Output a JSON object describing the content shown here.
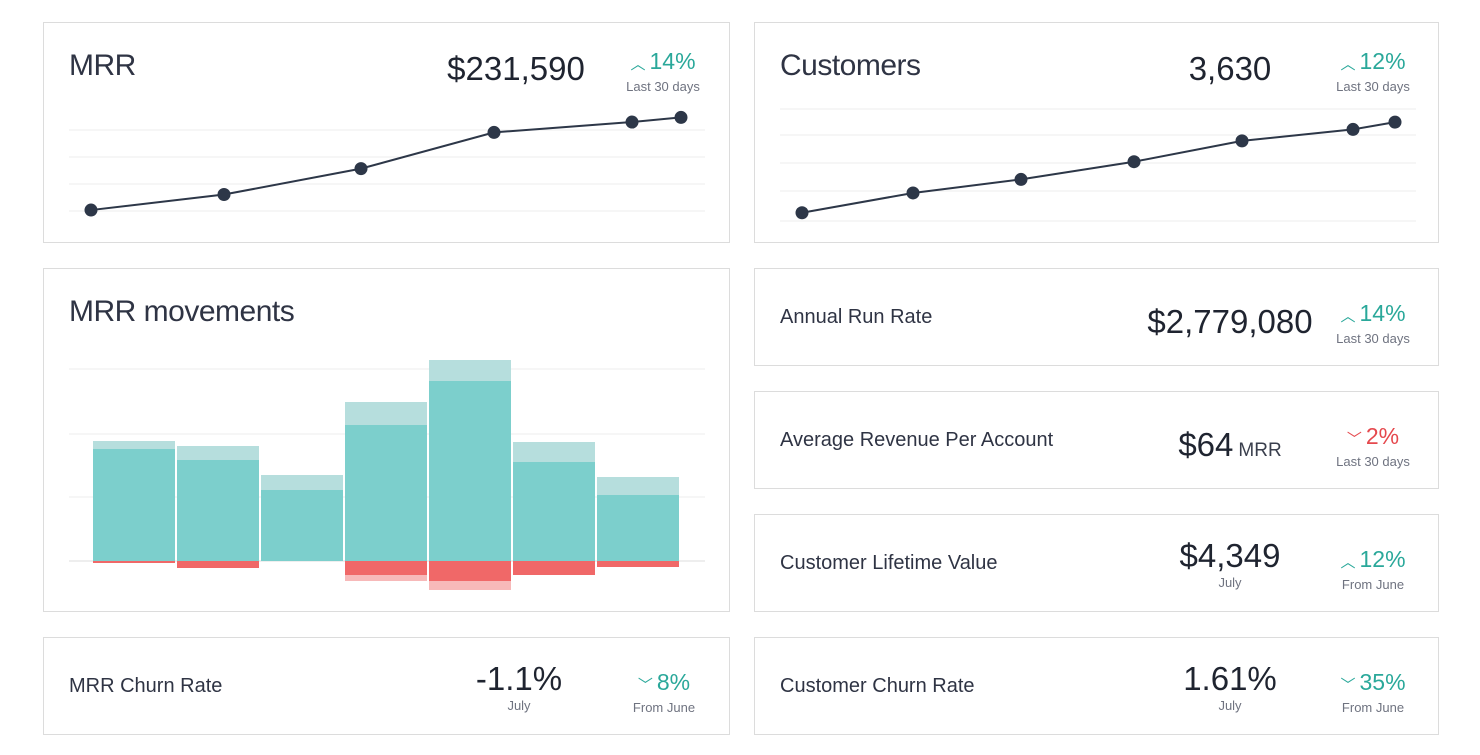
{
  "cards": {
    "mrr": {
      "title": "MRR",
      "value": "$231,590",
      "delta": "14%",
      "delta_direction": "up",
      "period": "Last 30 days"
    },
    "customers": {
      "title": "Customers",
      "value": "3,630",
      "delta": "12%",
      "delta_direction": "up",
      "period": "Last 30 days"
    },
    "mrr_movements": {
      "title": "MRR movements"
    },
    "annual_run_rate": {
      "label": "Annual Run Rate",
      "value": "$2,779,080",
      "delta": "14%",
      "delta_direction": "up",
      "period": "Last 30 days"
    },
    "arpa": {
      "label": "Average Revenue Per Account",
      "value": "$64",
      "value_suffix": "MRR",
      "delta": "2%",
      "delta_direction": "down",
      "period": "Last 30 days"
    },
    "clv": {
      "label": "Customer Lifetime Value",
      "value": "$4,349",
      "sub": "July",
      "delta": "12%",
      "delta_direction": "up",
      "period": "From June"
    },
    "mrr_churn": {
      "label": "MRR Churn Rate",
      "value": "-1.1%",
      "sub": "July",
      "delta": "8%",
      "delta_direction": "down",
      "period": "From June"
    },
    "customer_churn": {
      "label": "Customer Churn Rate",
      "value": "1.61%",
      "sub": "July",
      "delta": "35%",
      "delta_direction": "down",
      "period": "From June"
    }
  },
  "icons": {
    "up": "chevron-up-icon",
    "down": "chevron-down-icon"
  },
  "colors": {
    "positive": "#2aa89a",
    "negative": "#e5484d",
    "line": "#2d3748",
    "bar_teal": "#7ccfcc",
    "bar_teal_light": "#b6dedd",
    "bar_red": "#f06868",
    "bar_red_light": "#f7b9b9"
  },
  "chart_data": [
    {
      "type": "line",
      "title": "MRR",
      "x": [
        1,
        2,
        3,
        4,
        5,
        6
      ],
      "values": [
        160000,
        172000,
        192000,
        220000,
        228000,
        231590
      ]
    },
    {
      "type": "line",
      "title": "Customers",
      "x": [
        1,
        2,
        3,
        4,
        5,
        6,
        7
      ],
      "values": [
        2760,
        2950,
        3080,
        3250,
        3450,
        3560,
        3630
      ]
    },
    {
      "type": "bar",
      "title": "MRR movements",
      "categories": [
        "1",
        "2",
        "3",
        "4",
        "5",
        "6",
        "7"
      ],
      "series": [
        {
          "values": [
            112,
            101,
            71,
            136,
            180,
            99,
            66
          ]
        },
        {
          "values": [
            8,
            14,
            15,
            23,
            21,
            20,
            18
          ]
        },
        {
          "values": [
            -2,
            -7,
            0,
            -14,
            -20,
            -14,
            -6
          ]
        },
        {
          "values": [
            0,
            0,
            0,
            -6,
            -9,
            0,
            0
          ]
        }
      ],
      "ylim": [
        -40,
        210
      ]
    }
  ]
}
